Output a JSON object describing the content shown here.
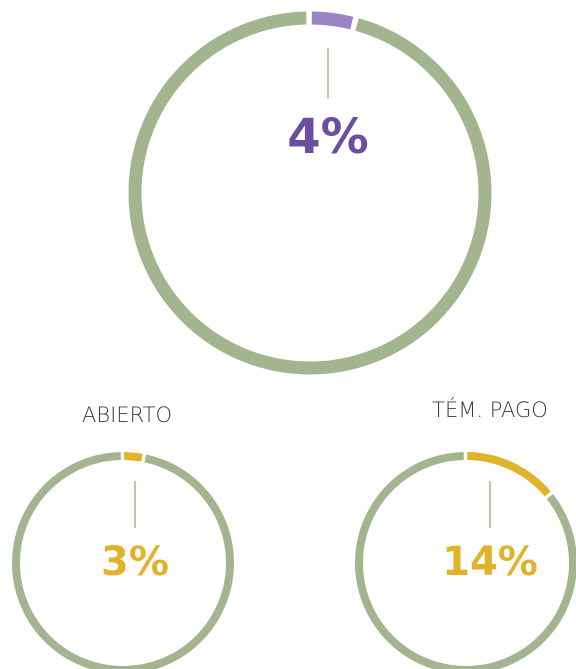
{
  "chart_data": [
    {
      "type": "donut",
      "values": [
        4
      ],
      "value_labels": [
        "4%"
      ],
      "color": "#9b84c6",
      "label_color": "#6a4fa0",
      "ring_color": "#a3b58f"
    },
    {
      "type": "donut",
      "title": "ABIERTO",
      "values": [
        3
      ],
      "value_labels": [
        "3%"
      ],
      "color": "#e0b32a",
      "label_color": "#e0b32a",
      "ring_color": "#a3b58f"
    },
    {
      "type": "donut",
      "title": "TÉM. PAGO",
      "values": [
        14
      ],
      "value_labels": [
        "14%"
      ],
      "color": "#e0b32a",
      "label_color": "#e0b32a",
      "ring_color": "#a3b58f"
    }
  ]
}
